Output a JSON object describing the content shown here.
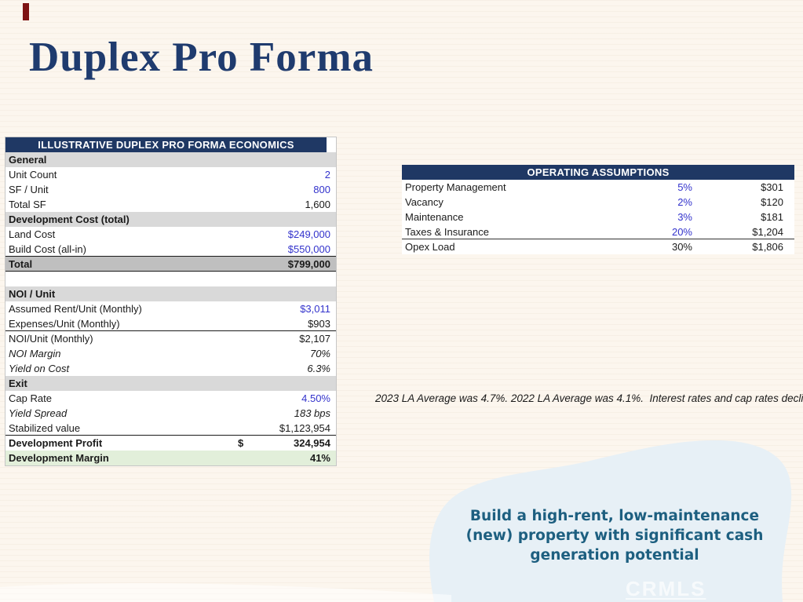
{
  "slide": {
    "title": "Duplex Pro Forma",
    "title_color": "#1F3B6E",
    "background_color": "#FCF6EE",
    "red_mark_color": "#7E1313"
  },
  "proforma_table": {
    "header": "ILLUSTRATIVE DUPLEX PRO FORMA ECONOMICS",
    "header_bg": "#1F3864",
    "value_accent_color": "#3333CC",
    "section_bg": "#D9D9D9",
    "total_row_bg": "#BFBFBF",
    "margin_row_bg": "#E2EFDA",
    "rows": [
      {
        "type": "section",
        "label": "General"
      },
      {
        "type": "data",
        "label": "Unit Count",
        "value": "2",
        "blue": true
      },
      {
        "type": "data",
        "label": "SF / Unit",
        "value": "800",
        "blue": true
      },
      {
        "type": "data",
        "label": "Total SF",
        "value": "1,600"
      },
      {
        "type": "section",
        "label": "Development Cost (total)"
      },
      {
        "type": "data",
        "label": "Land Cost",
        "value": "$249,000",
        "blue": true
      },
      {
        "type": "data",
        "label": "Build Cost (all-in)",
        "value": "$550,000",
        "blue": true,
        "border_bottom": true
      },
      {
        "type": "total",
        "label": "Total",
        "value": "$799,000"
      },
      {
        "type": "spacer"
      },
      {
        "type": "section",
        "label": "NOI / Unit"
      },
      {
        "type": "data",
        "label": "Assumed Rent/Unit (Monthly)",
        "value": "$3,011",
        "blue": true
      },
      {
        "type": "data",
        "label": "Expenses/Unit (Monthly)",
        "value": "$903",
        "border_bottom": true
      },
      {
        "type": "data",
        "label": "NOI/Unit (Monthly)",
        "value": "$2,107"
      },
      {
        "type": "data",
        "label": "NOI Margin",
        "value": "70%",
        "italic": true
      },
      {
        "type": "data",
        "label": "Yield on Cost",
        "value": "6.3%",
        "italic": true
      },
      {
        "type": "section",
        "label": "Exit"
      },
      {
        "type": "data",
        "label": "Cap Rate",
        "value": "4.50%",
        "blue": true
      },
      {
        "type": "data",
        "label": "Yield Spread",
        "value": "183 bps",
        "italic": true
      },
      {
        "type": "data",
        "label": "Stabilized value",
        "value": "$1,123,954",
        "border_bottom": true
      },
      {
        "type": "data",
        "label": "Development Profit",
        "value": "324,954",
        "bold": true,
        "currency": "$"
      },
      {
        "type": "green",
        "label": "Development Margin",
        "value": "41%"
      }
    ]
  },
  "operating_table": {
    "header": "OPERATING ASSUMPTIONS",
    "header_bg": "#1F3864",
    "rows": [
      {
        "label": "Property Management",
        "pct": "5%",
        "pct_blue": true,
        "amount": "$301"
      },
      {
        "label": "Vacancy",
        "pct": "2%",
        "pct_blue": true,
        "amount": "$120"
      },
      {
        "label": "Maintenance",
        "pct": "3%",
        "pct_blue": true,
        "amount": "$181"
      },
      {
        "label": "Taxes & Insurance",
        "pct": "20%",
        "pct_blue": true,
        "amount": "$1,204",
        "border_bottom": true
      },
      {
        "label": "Opex Load",
        "pct": "30%",
        "amount": "$1,806"
      }
    ]
  },
  "annotation": {
    "text": "2023 LA Average was 4.7%. 2022 LA Average was 4.1%.  Interest rates and cap rates declin."
  },
  "callout": {
    "lines": [
      "Build a high-rent, low-maintenance",
      "(new) property with significant cash",
      "generation potential"
    ],
    "text_color": "#1D5F80",
    "blob_color": "#E7F0F6"
  },
  "watermark": "CRMLS"
}
